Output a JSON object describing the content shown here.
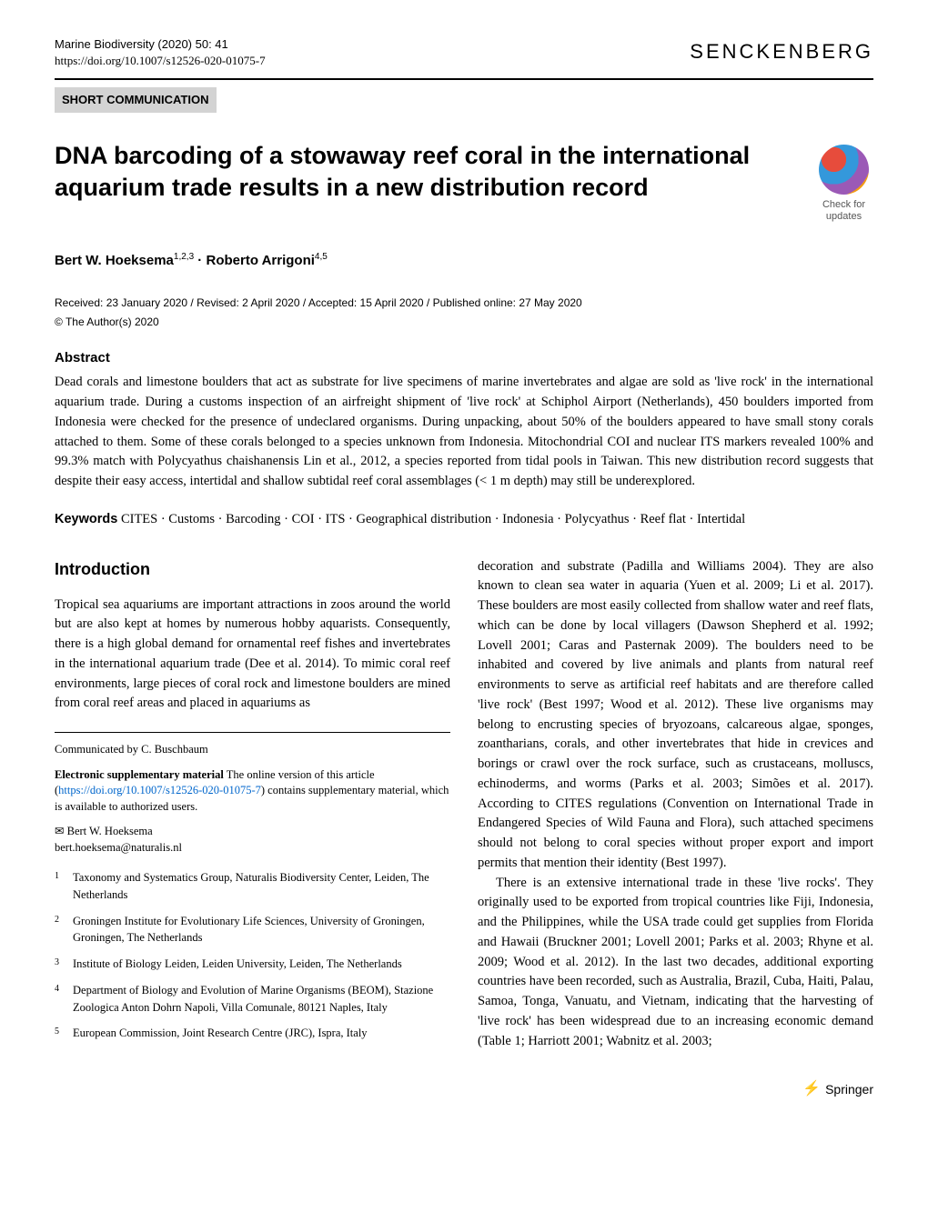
{
  "header": {
    "journal_name": "Marine Biodiversity (2020) 50: 41",
    "doi": "https://doi.org/10.1007/s12526-020-01075-7",
    "publisher": "SENCKENBERG"
  },
  "article_type": "SHORT COMMUNICATION",
  "check_updates": {
    "line1": "Check for",
    "line2": "updates"
  },
  "title": "DNA barcoding of a stowaway reef coral in the international aquarium trade results in a new distribution record",
  "authors": "Bert W. Hoeksema",
  "author_affiliations_1": "1,2,3",
  "author_separator": " · ",
  "author2": "Roberto Arrigoni",
  "author_affiliations_2": "4,5",
  "dates": "Received: 23 January 2020 / Revised: 2 April 2020 / Accepted: 15 April 2020 / Published online: 27 May 2020",
  "copyright": "© The Author(s) 2020",
  "abstract": {
    "heading": "Abstract",
    "text": "Dead corals and limestone boulders that act as substrate for live specimens of marine invertebrates and algae are sold as 'live rock' in the international aquarium trade. During a customs inspection of an airfreight shipment of 'live rock' at Schiphol Airport (Netherlands), 450 boulders imported from Indonesia were checked for the presence of undeclared organisms. During unpacking, about 50% of the boulders appeared to have small stony corals attached to them. Some of these corals belonged to a species unknown from Indonesia. Mitochondrial COI and nuclear ITS markers revealed 100% and 99.3% match with Polycyathus chaishanensis Lin et al., 2012, a species reported from tidal pools in Taiwan. This new distribution record suggests that despite their easy access, intertidal and shallow subtidal reef coral assemblages (< 1 m depth) may still be underexplored."
  },
  "keywords": {
    "label": "Keywords",
    "text": "CITES · Customs · Barcoding · COI · ITS · Geographical distribution · Indonesia · Polycyathus · Reef flat · Intertidal"
  },
  "introduction": {
    "heading": "Introduction",
    "left_text": "Tropical sea aquariums are important attractions in zoos around the world but are also kept at homes by numerous hobby aquarists. Consequently, there is a high global demand for ornamental reef fishes and invertebrates in the international aquarium trade (Dee et al. 2014). To mimic coral reef environments, large pieces of coral rock and limestone boulders are mined from coral reef areas and placed in aquariums as",
    "right_text_1": "decoration and substrate (Padilla and Williams 2004). They are also known to clean sea water in aquaria (Yuen et al. 2009; Li et al. 2017). These boulders are most easily collected from shallow water and reef flats, which can be done by local villagers (Dawson Shepherd et al. 1992; Lovell 2001; Caras and Pasternak 2009). The boulders need to be inhabited and covered by live animals and plants from natural reef environments to serve as artificial reef habitats and are therefore called 'live rock' (Best 1997; Wood et al. 2012). These live organisms may belong to encrusting species of bryozoans, calcareous algae, sponges, zoantharians, corals, and other invertebrates that hide in crevices and borings or crawl over the rock surface, such as crustaceans, molluscs, echinoderms, and worms (Parks et al. 2003; Simões et al. 2017). According to CITES regulations (Convention on International Trade in Endangered Species of Wild Fauna and Flora), such attached specimens should not belong to coral species without proper export and import permits that mention their identity (Best 1997).",
    "right_text_2": "There is an extensive international trade in these 'live rocks'. They originally used to be exported from tropical countries like Fiji, Indonesia, and the Philippines, while the USA trade could get supplies from Florida and Hawaii (Bruckner 2001; Lovell 2001; Parks et al. 2003; Rhyne et al. 2009; Wood et al. 2012). In the last two decades, additional exporting countries have been recorded, such as Australia, Brazil, Cuba, Haiti, Palau, Samoa, Tonga, Vanuatu, and Vietnam, indicating that the harvesting of 'live rock' has been widespread due to an increasing economic demand (Table 1; Harriott 2001; Wabnitz et al. 2003;"
  },
  "footnotes": {
    "communicated": "Communicated by C. Buschbaum",
    "supplementary_label": "Electronic supplementary material",
    "supplementary_text": "The online version of this article (",
    "supplementary_link": "https://doi.org/10.1007/s12526-020-01075-7",
    "supplementary_text_end": ") contains supplementary material, which is available to authorized users.",
    "corresponding_symbol": "✉",
    "corresponding_name": "Bert W. Hoeksema",
    "corresponding_email": "bert.hoeksema@naturalis.nl"
  },
  "affiliations": [
    {
      "num": "1",
      "text": "Taxonomy and Systematics Group, Naturalis Biodiversity Center, Leiden, The Netherlands"
    },
    {
      "num": "2",
      "text": "Groningen Institute for Evolutionary Life Sciences, University of Groningen, Groningen, The Netherlands"
    },
    {
      "num": "3",
      "text": "Institute of Biology Leiden, Leiden University, Leiden, The Netherlands"
    },
    {
      "num": "4",
      "text": "Department of Biology and Evolution of Marine Organisms (BEOM), Stazione Zoologica Anton Dohrn Napoli, Villa Comunale, 80121 Naples, Italy"
    },
    {
      "num": "5",
      "text": "European Commission, Joint Research Centre (JRC), Ispra, Italy"
    }
  ],
  "footer": {
    "publisher": "Springer"
  }
}
